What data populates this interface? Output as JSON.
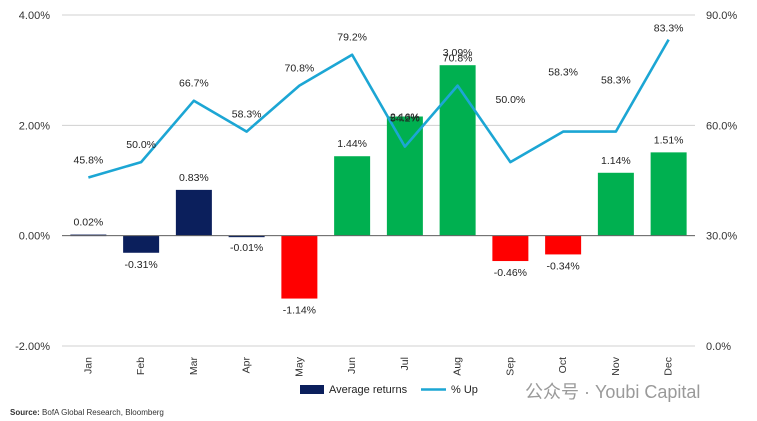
{
  "chart_data": {
    "type": "bar+line",
    "categories": [
      "Jan",
      "Feb",
      "Mar",
      "Apr",
      "May",
      "Jun",
      "Jul",
      "Aug",
      "Sep",
      "Oct",
      "Nov",
      "Dec"
    ],
    "series": [
      {
        "name": "Average returns",
        "type": "bar",
        "axis": "left",
        "values": [
          0.02,
          -0.31,
          0.83,
          -0.01,
          -1.14,
          1.44,
          2.16,
          3.09,
          -0.46,
          -0.34,
          1.14,
          1.51
        ],
        "labels": [
          "0.02%",
          "-0.31%",
          "0.83%",
          "-0.01%",
          "-1.14%",
          "1.44%",
          "2.16%",
          "3.09%",
          "-0.46%",
          "-0.34%",
          "1.14%",
          "1.51%"
        ],
        "colors": [
          "#0b1f5c",
          "#0b1f5c",
          "#0b1f5c",
          "#0b1f5c",
          "#ff0000",
          "#00b050",
          "#00b050",
          "#00b050",
          "#ff0000",
          "#ff0000",
          "#00b050",
          "#00b050"
        ]
      },
      {
        "name": "% Up",
        "type": "line",
        "axis": "right",
        "values": [
          45.8,
          50.0,
          66.7,
          58.3,
          70.8,
          79.2,
          54.2,
          70.8,
          50.0,
          58.3,
          58.3,
          83.3
        ],
        "labels": [
          "45.8%",
          "50.0%",
          "66.7%",
          "58.3%",
          "70.8%",
          "79.2%",
          "54.2%",
          "70.8%",
          "50.0%",
          "58.3%",
          "58.3%",
          "83.3%"
        ],
        "color": "#1ca6d4"
      }
    ],
    "y_left": {
      "min": -2,
      "max": 4,
      "ticks": [
        "-2.00%",
        "0.00%",
        "2.00%",
        "4.00%"
      ]
    },
    "y_right": {
      "min": 0,
      "max": 90,
      "ticks": [
        "0.0%",
        "30.0%",
        "60.0%",
        "90.0%"
      ]
    },
    "grid": true,
    "legend": {
      "position": "bottom",
      "items": [
        "Average returns",
        "% Up"
      ]
    }
  },
  "source": {
    "label": "Source:",
    "text": "BofA Global Research, Bloomberg"
  },
  "watermark": "公众号 · Youbi Capital"
}
